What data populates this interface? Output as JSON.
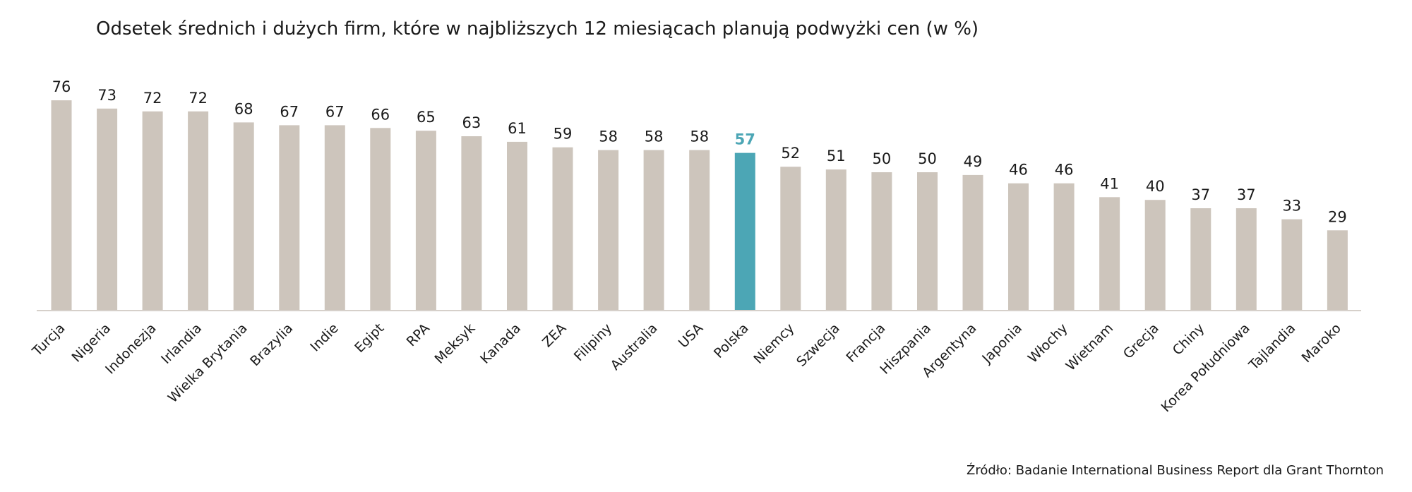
{
  "chart_data": {
    "type": "bar",
    "title": "Odsetek średnich i dużych firm, które w najbliższych 12 miesiącach planują podwyżki cen (w %)",
    "xlabel": "",
    "ylabel": "",
    "ylim": [
      0,
      80
    ],
    "grid": false,
    "categories": [
      "Turcja",
      "Nigeria",
      "Indonezja",
      "Irlandia",
      "Wielka Brytania",
      "Brazylia",
      "Indie",
      "Egipt",
      "RPA",
      "Meksyk",
      "Kanada",
      "ZEA",
      "Filipiny",
      "Australia",
      "USA",
      "Polska",
      "Niemcy",
      "Szwecja",
      "Francja",
      "Hiszpania",
      "Argentyna",
      "Japonia",
      "Włochy",
      "Wietnam",
      "Grecja",
      "Chiny",
      "Korea Południowa",
      "Tajlandia",
      "Maroko"
    ],
    "values": [
      76,
      73,
      72,
      72,
      68,
      67,
      67,
      66,
      65,
      63,
      61,
      59,
      58,
      58,
      58,
      57,
      52,
      51,
      50,
      50,
      49,
      46,
      46,
      41,
      40,
      37,
      37,
      33,
      29
    ],
    "value_labels": [
      "76",
      "73",
      "72",
      "72",
      "68",
      "67",
      "67",
      "66",
      "65",
      "63",
      "61",
      "59",
      "58",
      "58",
      "58",
      "57",
      "52",
      "51",
      "50",
      "50",
      "49",
      "46",
      "46",
      "41",
      "40",
      "37",
      "37",
      "33",
      "29"
    ],
    "highlight_category": "Polska",
    "colors": {
      "bar": "#cdc5bc",
      "highlight": "#4ca6b5",
      "axis": "#d6d0ca",
      "text": "#1a1a1a"
    }
  },
  "source": "Źródło:  Badanie International Business Report dla Grant Thornton"
}
